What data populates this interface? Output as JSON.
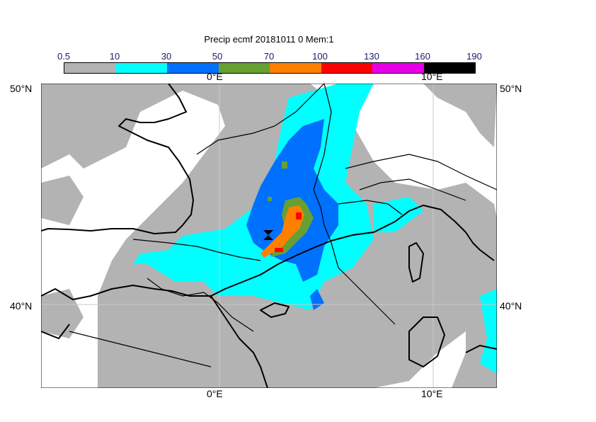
{
  "title": "Precip ecmf 20181011 0 Mem:1",
  "colorbar": {
    "ticks": [
      "0.5",
      "10",
      "30",
      "50",
      "70",
      "100",
      "130",
      "160",
      "190"
    ],
    "colors": [
      "#b3b3b3",
      "#00ffff",
      "#0070ff",
      "#66a032",
      "#ff8000",
      "#ff0000",
      "#e600e6",
      "#000000"
    ]
  },
  "axes": {
    "lon_top": [
      "0°E",
      "10°E"
    ],
    "lon_bottom": [
      "0°E",
      "10°E"
    ],
    "lat_left": [
      "50°N",
      "40°N"
    ],
    "lat_right": [
      "50°N",
      "40°N"
    ]
  },
  "marker": "location-marker"
}
